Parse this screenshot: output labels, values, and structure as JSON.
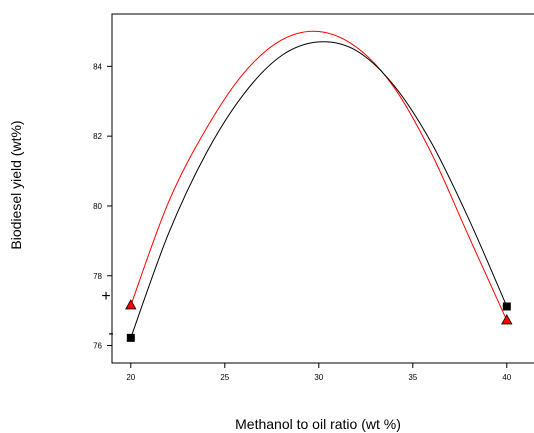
{
  "chart_data": {
    "type": "line",
    "title": "",
    "xlabel": "Methanol to oil ratio (wt %)",
    "ylabel": "Biodiesel yield (wt%)",
    "xlim": [
      19,
      41.5
    ],
    "ylim": [
      75.5,
      85.5
    ],
    "x_ticks": [
      "20",
      "25",
      "30",
      "35",
      "40"
    ],
    "y_ticks": [
      "76",
      "78",
      "80",
      "82",
      "84"
    ],
    "grid": false,
    "series": [
      {
        "key": "plus",
        "name": "+",
        "color": "#ff0000",
        "marker": "triangle",
        "marker_color": "#ff0000",
        "endpoints": [
          {
            "x": 20,
            "y": 77.15
          },
          {
            "x": 40,
            "y": 76.72
          }
        ],
        "curve": [
          {
            "x": 20,
            "y": 77.15
          },
          {
            "x": 22,
            "y": 80.1
          },
          {
            "x": 24,
            "y": 82.2
          },
          {
            "x": 26,
            "y": 83.8
          },
          {
            "x": 28,
            "y": 84.75
          },
          {
            "x": 30,
            "y": 85.0
          },
          {
            "x": 32,
            "y": 84.55
          },
          {
            "x": 34,
            "y": 83.4
          },
          {
            "x": 36,
            "y": 81.5
          },
          {
            "x": 38,
            "y": 79.1
          },
          {
            "x": 40,
            "y": 76.72
          }
        ]
      },
      {
        "key": "minus",
        "name": "-",
        "color": "#000000",
        "marker": "square",
        "marker_color": "#000000",
        "endpoints": [
          {
            "x": 20,
            "y": 76.22
          },
          {
            "x": 40,
            "y": 77.12
          }
        ],
        "curve": [
          {
            "x": 20,
            "y": 76.22
          },
          {
            "x": 22,
            "y": 79.2
          },
          {
            "x": 24,
            "y": 81.5
          },
          {
            "x": 26,
            "y": 83.2
          },
          {
            "x": 28,
            "y": 84.3
          },
          {
            "x": 30,
            "y": 84.7
          },
          {
            "x": 32,
            "y": 84.45
          },
          {
            "x": 34,
            "y": 83.45
          },
          {
            "x": 36,
            "y": 81.8
          },
          {
            "x": 38,
            "y": 79.6
          },
          {
            "x": 40,
            "y": 77.12
          }
        ]
      }
    ]
  },
  "legend": {
    "plus_label": "+",
    "minus_label": "-"
  }
}
